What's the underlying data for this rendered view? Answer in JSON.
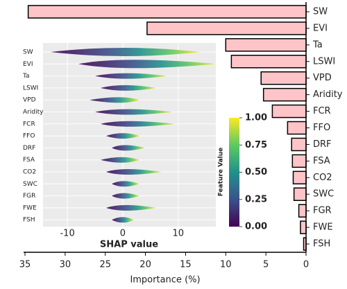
{
  "chart_data": [
    {
      "type": "barh",
      "x_label": "Importance (%)",
      "categories": [
        "SW",
        "EVI",
        "Ta",
        "LSWI",
        "VPD",
        "Aridity",
        "FCR",
        "FFO",
        "DRF",
        "FSA",
        "CO2",
        "SWC",
        "FGR",
        "FWE",
        "FSH"
      ],
      "values": [
        34.6,
        19.8,
        10.0,
        9.3,
        5.6,
        5.3,
        4.2,
        2.3,
        1.8,
        1.7,
        1.6,
        1.5,
        0.9,
        0.7,
        0.3
      ],
      "color": "#ffc4c8",
      "xlim": [
        35,
        0
      ],
      "xticks": [
        35,
        30,
        25,
        20,
        15,
        10,
        5,
        0
      ]
    },
    {
      "type": "beeswarm",
      "x_label": "SHAP value",
      "colorbar_label": "Feature Value",
      "categories": [
        "SW",
        "EVI",
        "Ta",
        "LSWI",
        "VPD",
        "Aridity",
        "FCR",
        "FFO",
        "DRF",
        "FSA",
        "CO2",
        "SWC",
        "FGR",
        "FWE",
        "FSH"
      ],
      "min": [
        -13,
        -8,
        -5,
        -4,
        -6,
        -5,
        -4,
        -3,
        -2,
        -4,
        -3,
        -2,
        -2,
        -3,
        -2
      ],
      "max": [
        14,
        17,
        8,
        6,
        3,
        9,
        9.5,
        3,
        4,
        3,
        7,
        3,
        3,
        6,
        2
      ],
      "xlim": [
        -14.4,
        16.8
      ],
      "xticks": [
        -10,
        0,
        10
      ],
      "grid": true,
      "clim": [
        0,
        1
      ],
      "cticks": [
        {
          "value": 0,
          "label": "0.00"
        },
        {
          "value": 0.25,
          "label": "0.25"
        },
        {
          "value": 0.5,
          "label": "0.50"
        },
        {
          "value": 0.75,
          "label": "0.75"
        },
        {
          "value": 1,
          "label": "1.00"
        }
      ]
    }
  ]
}
